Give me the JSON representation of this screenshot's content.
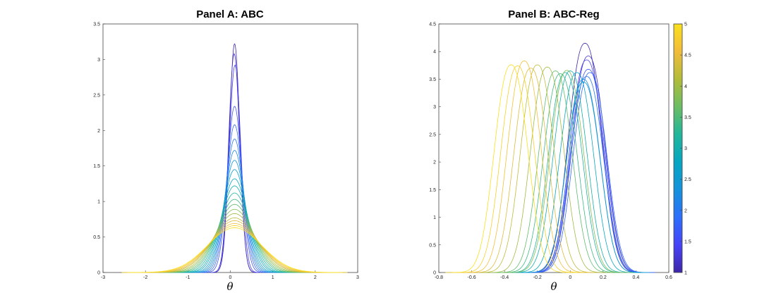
{
  "chart_data": [
    {
      "type": "line",
      "title": "Panel A: ABC",
      "xlabel": "θ",
      "ylabel": "",
      "xlim": [
        -3,
        3
      ],
      "ylim": [
        0,
        3.5
      ],
      "xticks": [
        "-3",
        "-2",
        "-1",
        "0",
        "1",
        "2",
        "3"
      ],
      "yticks": [
        "0",
        "0.5",
        "1",
        "1.5",
        "2",
        "2.5",
        "3",
        "3.5"
      ],
      "curve_shape": "gaussian",
      "series": [
        {
          "colorValue": 1.0,
          "peak": 3.22,
          "center": 0.1
        },
        {
          "colorValue": 1.2,
          "peak": 3.08,
          "center": 0.09
        },
        {
          "colorValue": 1.4,
          "peak": 2.92,
          "center": 0.11
        },
        {
          "colorValue": 1.6,
          "peak": 2.34,
          "center": 0.1
        },
        {
          "colorValue": 1.8,
          "peak": 2.08,
          "center": 0.1
        },
        {
          "colorValue": 2.0,
          "peak": 1.88,
          "center": 0.1
        },
        {
          "colorValue": 2.2,
          "peak": 1.72,
          "center": 0.1
        },
        {
          "colorValue": 2.4,
          "peak": 1.58,
          "center": 0.1
        },
        {
          "colorValue": 2.6,
          "peak": 1.45,
          "center": 0.1
        },
        {
          "colorValue": 2.8,
          "peak": 1.32,
          "center": 0.1
        },
        {
          "colorValue": 3.0,
          "peak": 1.22,
          "center": 0.1
        },
        {
          "colorValue": 3.2,
          "peak": 1.12,
          "center": 0.1
        },
        {
          "colorValue": 3.4,
          "peak": 1.03,
          "center": 0.1
        },
        {
          "colorValue": 3.6,
          "peak": 0.96,
          "center": 0.1
        },
        {
          "colorValue": 3.8,
          "peak": 0.89,
          "center": 0.1
        },
        {
          "colorValue": 4.0,
          "peak": 0.83,
          "center": 0.1
        },
        {
          "colorValue": 4.2,
          "peak": 0.77,
          "center": 0.1
        },
        {
          "colorValue": 4.4,
          "peak": 0.73,
          "center": 0.1
        },
        {
          "colorValue": 4.6,
          "peak": 0.69,
          "center": 0.1
        },
        {
          "colorValue": 4.8,
          "peak": 0.66,
          "center": 0.1
        },
        {
          "colorValue": 5.0,
          "peak": 0.63,
          "center": 0.1
        }
      ]
    },
    {
      "type": "line",
      "title": "Panel B: ABC-Reg",
      "xlabel": "θ",
      "ylabel": "",
      "xlim": [
        -0.8,
        0.6
      ],
      "ylim": [
        0,
        4.5
      ],
      "xticks": [
        "-0.8",
        "-0.6",
        "-0.4",
        "-0.2",
        "0",
        "0.2",
        "0.4",
        "0.6"
      ],
      "yticks": [
        "0",
        "0.5",
        "1",
        "1.5",
        "2",
        "2.5",
        "3",
        "3.5",
        "4",
        "4.5"
      ],
      "curve_shape": "gaussian",
      "series": [
        {
          "colorValue": 1.0,
          "peak": 4.15,
          "center": 0.09
        },
        {
          "colorValue": 1.2,
          "peak": 3.92,
          "center": 0.11
        },
        {
          "colorValue": 1.4,
          "peak": 3.85,
          "center": 0.1
        },
        {
          "colorValue": 1.6,
          "peak": 3.68,
          "center": 0.11
        },
        {
          "colorValue": 1.8,
          "peak": 3.62,
          "center": 0.12
        },
        {
          "colorValue": 2.0,
          "peak": 3.55,
          "center": 0.1
        },
        {
          "colorValue": 2.2,
          "peak": 3.5,
          "center": 0.08
        },
        {
          "colorValue": 2.5,
          "peak": 3.45,
          "center": 0.08
        },
        {
          "colorValue": 2.8,
          "peak": 3.62,
          "center": 0.04
        },
        {
          "colorValue": 3.0,
          "peak": 3.65,
          "center": 0.0
        },
        {
          "colorValue": 3.2,
          "peak": 3.62,
          "center": -0.03
        },
        {
          "colorValue": 3.4,
          "peak": 3.6,
          "center": -0.06
        },
        {
          "colorValue": 3.6,
          "peak": 3.65,
          "center": -0.09
        },
        {
          "colorValue": 3.8,
          "peak": 3.66,
          "center": -0.02
        },
        {
          "colorValue": 4.0,
          "peak": 3.72,
          "center": -0.14
        },
        {
          "colorValue": 4.2,
          "peak": 3.76,
          "center": -0.2
        },
        {
          "colorValue": 4.4,
          "peak": 3.7,
          "center": -0.24
        },
        {
          "colorValue": 4.6,
          "peak": 3.83,
          "center": -0.28
        },
        {
          "colorValue": 4.8,
          "peak": 3.74,
          "center": -0.32
        },
        {
          "colorValue": 5.0,
          "peak": 3.76,
          "center": -0.36
        }
      ]
    }
  ],
  "colorbar": {
    "colormap": "parula",
    "range": [
      1,
      5
    ],
    "ticks": [
      "1",
      "1.5",
      "2",
      "2.5",
      "3",
      "3.5",
      "4",
      "4.5",
      "5"
    ],
    "colors": [
      "#3e26a8",
      "#4743f8",
      "#2e6ffa",
      "#1592dc",
      "#06a6c2",
      "#21b69a",
      "#6bbd64",
      "#b2bc3a",
      "#f2bc3c",
      "#f9e01d"
    ]
  }
}
